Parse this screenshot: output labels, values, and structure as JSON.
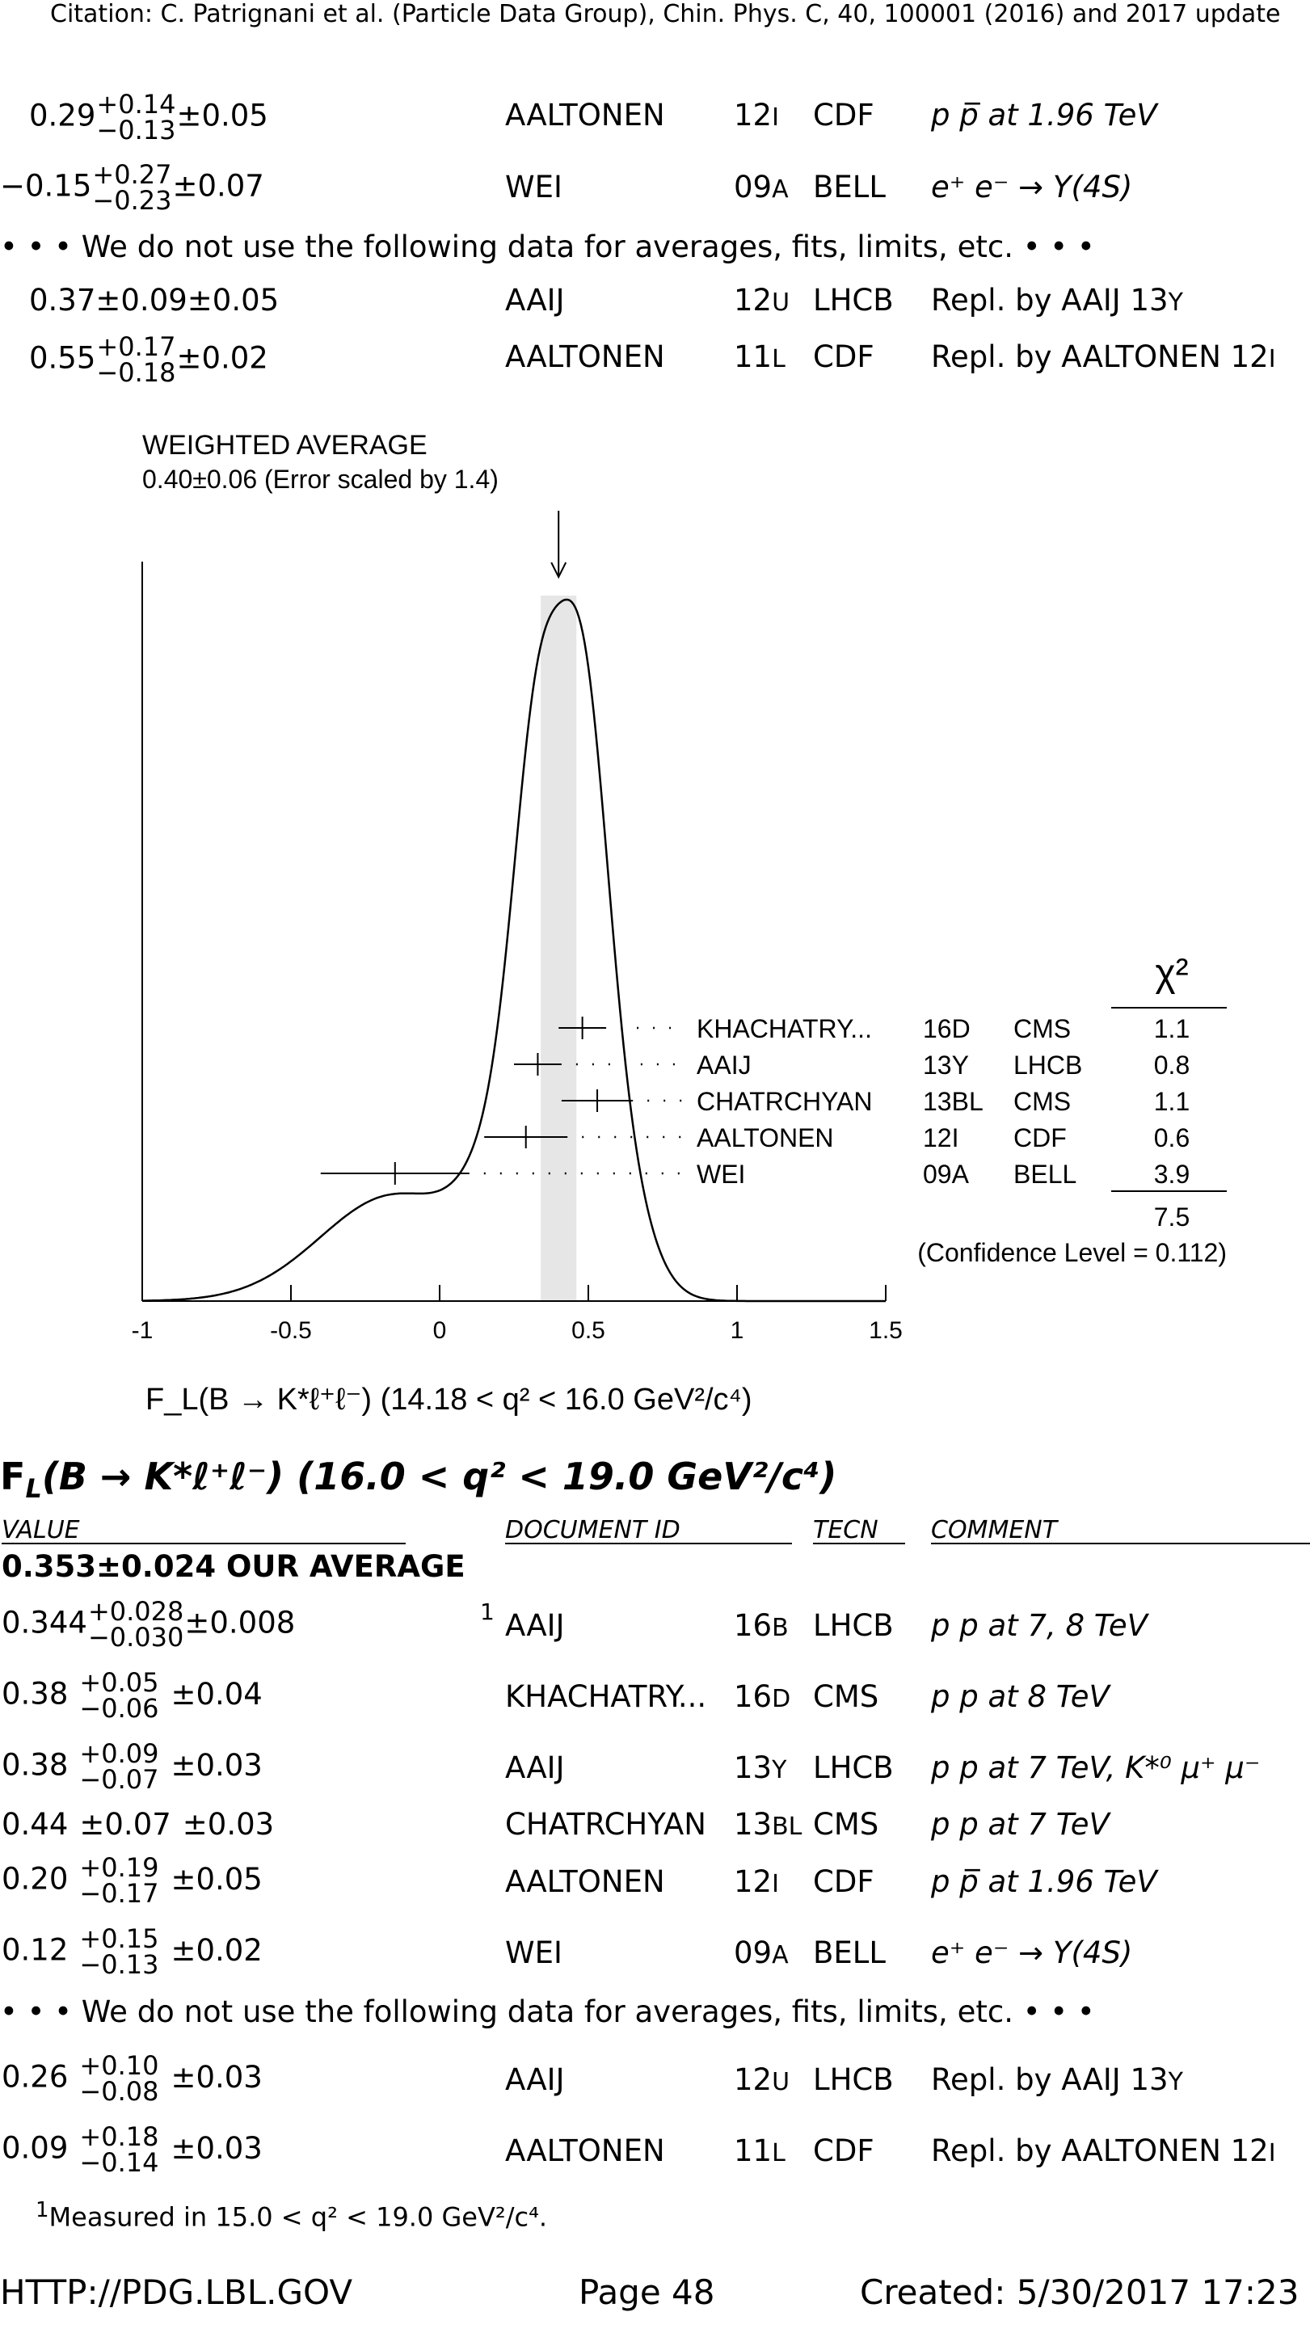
{
  "citation": "Citation: C. Patrignani et al. (Particle Data Group), Chin. Phys. C, 40, 100001 (2016) and 2017 update",
  "top_rows": [
    {
      "value": "0.29",
      "plus": "+0.14",
      "minus": "−0.13",
      "syst": "±0.05",
      "doc": "AALTONEN",
      "year": "12",
      "suffix": "I",
      "tecn": "CDF",
      "comment": "p p̅ at 1.96 TeV"
    },
    {
      "value": "−0.15",
      "plus": "+0.27",
      "minus": "−0.23",
      "syst": "±0.07",
      "doc": "WEI",
      "year": "09",
      "suffix": "A",
      "tecn": "BELL",
      "comment": "e⁺ e⁻ → Υ(4S)"
    }
  ],
  "notused_note": "• • • We do not use the following data for averages, fits, limits, etc. • • •",
  "top_notused_rows": [
    {
      "value": "0.37",
      "stat": "±0.09",
      "syst": "±0.05",
      "doc": "AAIJ",
      "year": "12",
      "suffix": "U",
      "tecn": "LHCB",
      "comment": "Repl. by AAIJ 13",
      "comment_suffix": "Y"
    },
    {
      "value": "0.55",
      "plus": "+0.17",
      "minus": "−0.18",
      "syst": "±0.02",
      "doc": "AALTONEN",
      "year": "11",
      "suffix": "L",
      "tecn": "CDF",
      "comment": "Repl. by AALTONEN 12",
      "comment_suffix": "I"
    }
  ],
  "chart_data": {
    "type": "ideogram",
    "title": "WEIGHTED AVERAGE",
    "subtitle": "0.40±0.06 (Error scaled by 1.4)",
    "weighted_average": 0.4,
    "band": [
      0.34,
      0.46
    ],
    "xlim": [
      -1,
      1.5
    ],
    "xticks": [
      "-1",
      "-0.5",
      "0",
      "0.5",
      "1",
      "1.5"
    ],
    "xlabel": "F_L(B → K*ℓ⁺ℓ⁻) (14.18 < q² < 16.0 GeV²/c⁴)",
    "chi2_header": "χ²",
    "measurements": [
      {
        "doc": "KHACHATRY...",
        "ref": "16D",
        "tecn": "CMS",
        "value": 0.48,
        "err": 0.08,
        "chi2": "1.1"
      },
      {
        "doc": "AAIJ",
        "ref": "13Y",
        "tecn": "LHCB",
        "value": 0.33,
        "err": 0.08,
        "chi2": "0.8"
      },
      {
        "doc": "CHATRCHYAN",
        "ref": "13BL",
        "tecn": "CMS",
        "value": 0.53,
        "err": 0.12,
        "chi2": "1.1"
      },
      {
        "doc": "AALTONEN",
        "ref": "12I",
        "tecn": "CDF",
        "value": 0.29,
        "err": 0.14,
        "chi2": "0.6"
      },
      {
        "doc": "WEI",
        "ref": "09A",
        "tecn": "BELL",
        "value": -0.15,
        "err": 0.25,
        "chi2": "3.9"
      }
    ],
    "chi2_total": "7.5",
    "confidence_level": "(Confidence Level = 0.112)"
  },
  "section": {
    "title_pre": "F",
    "title_sub": "L",
    "title_rest": "(B →  K*ℓ⁺ℓ⁻) (16.0 < q² < 19.0 GeV²/c⁴)",
    "col_value": "VALUE",
    "col_doc": "DOCUMENT ID",
    "col_tecn": "TECN",
    "col_comment": "COMMENT",
    "average": "0.353±0.024 OUR AVERAGE"
  },
  "rows": [
    {
      "value": "0.344",
      "plus": "+0.028",
      "minus": "−0.030",
      "syst": "±0.008",
      "foot": "1",
      "doc": "AAIJ",
      "year": "16",
      "suffix": "B",
      "tecn": "LHCB",
      "comment": "p p at 7, 8 TeV"
    },
    {
      "value": "0.38",
      "plus": "+0.05",
      "minus": "−0.06",
      "syst": "±0.04",
      "doc": "KHACHATRY...",
      "year": "16",
      "suffix": "D",
      "tecn": "CMS",
      "comment": "p p at 8 TeV"
    },
    {
      "value": "0.38",
      "plus": "+0.09",
      "minus": "−0.07",
      "syst": "±0.03",
      "doc": "AAIJ",
      "year": "13",
      "suffix": "Y",
      "tecn": "LHCB",
      "comment": "p p at 7 TeV, K*⁰ μ⁺ μ⁻"
    },
    {
      "value": "0.44",
      "stat": "±0.07",
      "syst": "±0.03",
      "doc": "CHATRCHYAN",
      "year": "13",
      "suffix": "BL",
      "tecn": "CMS",
      "comment": "p p at 7 TeV"
    },
    {
      "value": "0.20",
      "plus": "+0.19",
      "minus": "−0.17",
      "syst": "±0.05",
      "doc": "AALTONEN",
      "year": "12",
      "suffix": "I",
      "tecn": "CDF",
      "comment": "p p̅ at 1.96 TeV"
    },
    {
      "value": "0.12",
      "plus": "+0.15",
      "minus": "−0.13",
      "syst": "±0.02",
      "doc": "WEI",
      "year": "09",
      "suffix": "A",
      "tecn": "BELL",
      "comment": "e⁺ e⁻ → Υ(4S)"
    }
  ],
  "notused_rows": [
    {
      "value": "0.26",
      "plus": "+0.10",
      "minus": "−0.08",
      "syst": "±0.03",
      "doc": "AAIJ",
      "year": "12",
      "suffix": "U",
      "tecn": "LHCB",
      "comment": "Repl. by AAIJ 13",
      "comment_suffix": "Y"
    },
    {
      "value": "0.09",
      "plus": "+0.18",
      "minus": "−0.14",
      "syst": "±0.03",
      "doc": "AALTONEN",
      "year": "11",
      "suffix": "L",
      "tecn": "CDF",
      "comment": "Repl. by AALTONEN 12",
      "comment_suffix": "I"
    }
  ],
  "footnote_mark": "1",
  "footnote": "Measured in 15.0 < q² < 19.0 GeV²/c⁴.",
  "footer": {
    "left": "HTTP://PDG.LBL.GOV",
    "center": "Page 48",
    "right": "Created: 5/30/2017 17:23"
  }
}
